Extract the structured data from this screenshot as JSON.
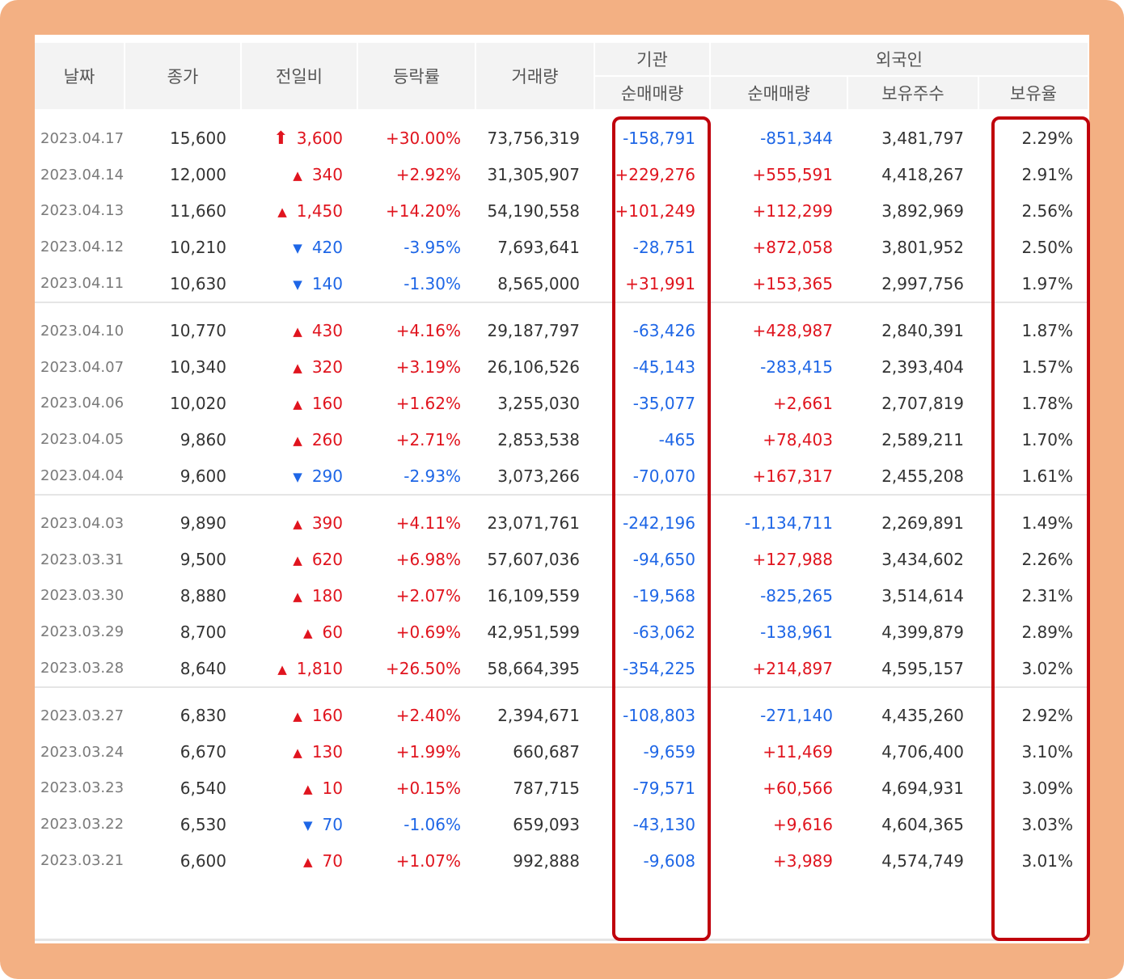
{
  "header": {
    "date": "날짜",
    "close": "종가",
    "change": "전일비",
    "rate": "등락률",
    "volume": "거래량",
    "institution": "기관",
    "foreigner": "외국인",
    "inst_net": "순매매량",
    "for_net": "순매매량",
    "holdings": "보유주수",
    "ratio": "보유율"
  },
  "rows": [
    {
      "date": "2023.04.17",
      "close": "15,600",
      "dir": "limit",
      "change": "3,600",
      "rate": "+30.00%",
      "volume": "73,756,319",
      "inst": "-158,791",
      "foreign": "-851,344",
      "holdings": "3,481,797",
      "ratio": "2.29%"
    },
    {
      "date": "2023.04.14",
      "close": "12,000",
      "dir": "up",
      "change": "340",
      "rate": "+2.92%",
      "volume": "31,305,907",
      "inst": "+229,276",
      "foreign": "+555,591",
      "holdings": "4,418,267",
      "ratio": "2.91%"
    },
    {
      "date": "2023.04.13",
      "close": "11,660",
      "dir": "up",
      "change": "1,450",
      "rate": "+14.20%",
      "volume": "54,190,558",
      "inst": "+101,249",
      "foreign": "+112,299",
      "holdings": "3,892,969",
      "ratio": "2.56%"
    },
    {
      "date": "2023.04.12",
      "close": "10,210",
      "dir": "down",
      "change": "420",
      "rate": "-3.95%",
      "volume": "7,693,641",
      "inst": "-28,751",
      "foreign": "+872,058",
      "holdings": "3,801,952",
      "ratio": "2.50%"
    },
    {
      "date": "2023.04.11",
      "close": "10,630",
      "dir": "down",
      "change": "140",
      "rate": "-1.30%",
      "volume": "8,565,000",
      "inst": "+31,991",
      "foreign": "+153,365",
      "holdings": "2,997,756",
      "ratio": "1.97%"
    },
    {
      "date": "2023.04.10",
      "close": "10,770",
      "dir": "up",
      "change": "430",
      "rate": "+4.16%",
      "volume": "29,187,797",
      "inst": "-63,426",
      "foreign": "+428,987",
      "holdings": "2,840,391",
      "ratio": "1.87%"
    },
    {
      "date": "2023.04.07",
      "close": "10,340",
      "dir": "up",
      "change": "320",
      "rate": "+3.19%",
      "volume": "26,106,526",
      "inst": "-45,143",
      "foreign": "-283,415",
      "holdings": "2,393,404",
      "ratio": "1.57%"
    },
    {
      "date": "2023.04.06",
      "close": "10,020",
      "dir": "up",
      "change": "160",
      "rate": "+1.62%",
      "volume": "3,255,030",
      "inst": "-35,077",
      "foreign": "+2,661",
      "holdings": "2,707,819",
      "ratio": "1.78%"
    },
    {
      "date": "2023.04.05",
      "close": "9,860",
      "dir": "up",
      "change": "260",
      "rate": "+2.71%",
      "volume": "2,853,538",
      "inst": "-465",
      "foreign": "+78,403",
      "holdings": "2,589,211",
      "ratio": "1.70%"
    },
    {
      "date": "2023.04.04",
      "close": "9,600",
      "dir": "down",
      "change": "290",
      "rate": "-2.93%",
      "volume": "3,073,266",
      "inst": "-70,070",
      "foreign": "+167,317",
      "holdings": "2,455,208",
      "ratio": "1.61%"
    },
    {
      "date": "2023.04.03",
      "close": "9,890",
      "dir": "up",
      "change": "390",
      "rate": "+4.11%",
      "volume": "23,071,761",
      "inst": "-242,196",
      "foreign": "-1,134,711",
      "holdings": "2,269,891",
      "ratio": "1.49%"
    },
    {
      "date": "2023.03.31",
      "close": "9,500",
      "dir": "up",
      "change": "620",
      "rate": "+6.98%",
      "volume": "57,607,036",
      "inst": "-94,650",
      "foreign": "+127,988",
      "holdings": "3,434,602",
      "ratio": "2.26%"
    },
    {
      "date": "2023.03.30",
      "close": "8,880",
      "dir": "up",
      "change": "180",
      "rate": "+2.07%",
      "volume": "16,109,559",
      "inst": "-19,568",
      "foreign": "-825,265",
      "holdings": "3,514,614",
      "ratio": "2.31%"
    },
    {
      "date": "2023.03.29",
      "close": "8,700",
      "dir": "up",
      "change": "60",
      "rate": "+0.69%",
      "volume": "42,951,599",
      "inst": "-63,062",
      "foreign": "-138,961",
      "holdings": "4,399,879",
      "ratio": "2.89%"
    },
    {
      "date": "2023.03.28",
      "close": "8,640",
      "dir": "up",
      "change": "1,810",
      "rate": "+26.50%",
      "volume": "58,664,395",
      "inst": "-354,225",
      "foreign": "+214,897",
      "holdings": "4,595,157",
      "ratio": "3.02%"
    },
    {
      "date": "2023.03.27",
      "close": "6,830",
      "dir": "up",
      "change": "160",
      "rate": "+2.40%",
      "volume": "2,394,671",
      "inst": "-108,803",
      "foreign": "-271,140",
      "holdings": "4,435,260",
      "ratio": "2.92%"
    },
    {
      "date": "2023.03.24",
      "close": "6,670",
      "dir": "up",
      "change": "130",
      "rate": "+1.99%",
      "volume": "660,687",
      "inst": "-9,659",
      "foreign": "+11,469",
      "holdings": "4,706,400",
      "ratio": "3.10%"
    },
    {
      "date": "2023.03.23",
      "close": "6,540",
      "dir": "up",
      "change": "10",
      "rate": "+0.15%",
      "volume": "787,715",
      "inst": "-79,571",
      "foreign": "+60,566",
      "holdings": "4,694,931",
      "ratio": "3.09%"
    },
    {
      "date": "2023.03.22",
      "close": "6,530",
      "dir": "down",
      "change": "70",
      "rate": "-1.06%",
      "volume": "659,093",
      "inst": "-43,130",
      "foreign": "+9,616",
      "holdings": "4,604,365",
      "ratio": "3.03%"
    },
    {
      "date": "2023.03.21",
      "close": "6,600",
      "dir": "up",
      "change": "70",
      "rate": "+1.07%",
      "volume": "992,888",
      "inst": "-9,608",
      "foreign": "+3,989",
      "holdings": "4,574,749",
      "ratio": "3.01%"
    }
  ],
  "colors": {
    "frame": "#f3b083",
    "up": "#e0141e",
    "down": "#1e66e6",
    "highlight": "#c0000c",
    "header_bg": "#f3f3f3"
  },
  "icons": {
    "limit": "arrow-up-icon",
    "up": "triangle-up-icon",
    "down": "triangle-down-icon"
  }
}
